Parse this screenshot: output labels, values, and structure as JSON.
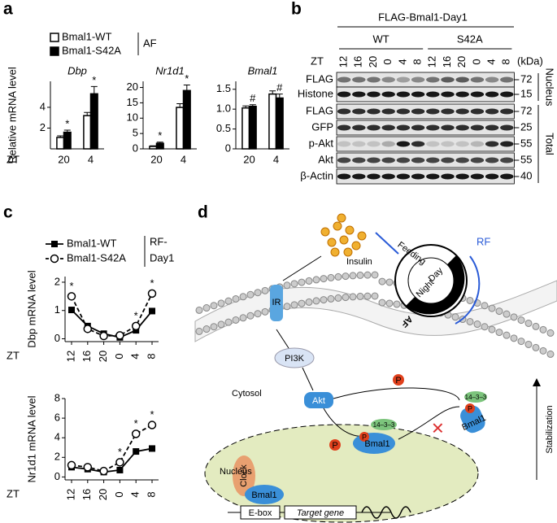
{
  "panel_letters": [
    "a",
    "b",
    "c",
    "d"
  ],
  "chart_data": [
    {
      "type": "bar",
      "title": "Dbp",
      "y_label": "Relative mRNA level",
      "x_label": "ZT",
      "categories": [
        "20",
        "4"
      ],
      "series": [
        {
          "name": "Bmal1-WT",
          "color": "#ffffff",
          "values": [
            1.1,
            3.2
          ],
          "errors": [
            0.15,
            0.3
          ]
        },
        {
          "name": "Bmal1-S42A",
          "color": "#000000",
          "values": [
            1.6,
            5.3
          ],
          "errors": [
            0.2,
            0.7
          ]
        }
      ],
      "ylim": [
        0,
        6.5
      ],
      "yticks": [
        2,
        4
      ],
      "annotations": [
        {
          "text": "*",
          "series": 1,
          "category": 0
        },
        {
          "text": "*",
          "series": 1,
          "category": 1
        }
      ]
    },
    {
      "type": "bar",
      "title": "Nr1d1",
      "categories": [
        "20",
        "4"
      ],
      "series": [
        {
          "color": "#ffffff",
          "values": [
            0.8,
            13.5
          ],
          "errors": [
            0.2,
            1.2
          ]
        },
        {
          "color": "#000000",
          "values": [
            1.8,
            19
          ],
          "errors": [
            0.4,
            1.8
          ]
        }
      ],
      "ylim": [
        0,
        22
      ],
      "yticks": [
        0,
        5,
        10,
        15,
        20
      ],
      "annotations": [
        {
          "text": "*",
          "series": 1,
          "category": 0
        },
        {
          "text": "*",
          "series": 1,
          "category": 1
        }
      ]
    },
    {
      "type": "bar",
      "title": "Bmal1",
      "categories": [
        "20",
        "4"
      ],
      "series": [
        {
          "color": "#ffffff",
          "values": [
            1.03,
            1.38
          ],
          "errors": [
            0.05,
            0.08
          ]
        },
        {
          "color": "#000000",
          "values": [
            1.07,
            1.28
          ],
          "errors": [
            0.04,
            0.1
          ]
        }
      ],
      "ylim": [
        0,
        1.7
      ],
      "yticks": [
        0,
        0.5,
        {
          "value": 1,
          "label": "1.0"
        },
        1.5
      ],
      "annotations": [
        {
          "text": "#",
          "series": 1,
          "category": 0
        },
        {
          "text": "#",
          "series": 1,
          "category": 1
        }
      ]
    },
    {
      "type": "line",
      "y_label": "Dbp mRNA level",
      "x_label": "ZT",
      "categories": [
        "12",
        "16",
        "20",
        "0",
        "4",
        "8"
      ],
      "series": [
        {
          "name": "Bmal1-WT",
          "color": "#000000",
          "marker": "square",
          "dashed": false,
          "values": [
            1.02,
            0.45,
            0.18,
            0.05,
            0.3,
            0.98
          ]
        },
        {
          "name": "Bmal1-S42A",
          "color": "#000000",
          "marker": "circle",
          "dashed": true,
          "values": [
            1.5,
            0.35,
            0.1,
            0.12,
            0.45,
            1.6
          ]
        }
      ],
      "ylim": [
        -0.1,
        2.2
      ],
      "yticks": [
        0,
        1,
        2
      ],
      "condition": [
        "RF-",
        "Day1"
      ],
      "annotations": [
        {
          "text": "*",
          "series": 1,
          "category": 0
        },
        {
          "text": "*",
          "series": 1,
          "category": 4
        },
        {
          "text": "*",
          "series": 1,
          "category": 5
        }
      ]
    },
    {
      "type": "line",
      "y_label": "Nr1d1 mRNA level",
      "x_label": "ZT",
      "categories": [
        "12",
        "16",
        "20",
        "0",
        "4",
        "8"
      ],
      "series": [
        {
          "color": "#000000",
          "marker": "square",
          "dashed": false,
          "values": [
            1.0,
            0.8,
            0.5,
            0.7,
            2.6,
            2.9
          ]
        },
        {
          "color": "#000000",
          "marker": "circle",
          "dashed": true,
          "values": [
            1.2,
            1.0,
            0.6,
            1.5,
            4.4,
            5.3
          ]
        }
      ],
      "ylim": [
        -0.3,
        8
      ],
      "yticks": [
        0,
        2,
        4,
        6,
        8
      ],
      "annotations": [
        {
          "text": "*",
          "series": 1,
          "category": 3
        },
        {
          "text": "*",
          "series": 1,
          "category": 4
        },
        {
          "text": "*",
          "series": 1,
          "category": 5
        }
      ]
    }
  ],
  "panel_a_condition": "AF",
  "blot": {
    "title": "FLAG-Bmal1-Day1",
    "groups": [
      "WT",
      "S42A"
    ],
    "zt_label": "ZT",
    "kda_label": "(kDa)",
    "lanes": [
      "12",
      "16",
      "20",
      "0",
      "4",
      "8",
      "12",
      "16",
      "20",
      "0",
      "4",
      "8"
    ],
    "rows": [
      {
        "label": "FLAG",
        "marker": "72"
      },
      {
        "label": "Histone",
        "marker": "15"
      },
      {
        "label": "FLAG",
        "marker": "72"
      },
      {
        "label": "GFP",
        "marker": "25"
      },
      {
        "label": "p-Akt",
        "marker": "55"
      },
      {
        "label": "Akt",
        "marker": "55"
      },
      {
        "label": "β-Actin",
        "marker": "40"
      }
    ],
    "fractions": [
      "Nucleus",
      "Total"
    ]
  },
  "diagram": {
    "insulin": "Insulin",
    "feeding": "Feeding",
    "rf": "RF",
    "day": "Day",
    "night": "Night",
    "af": "AF",
    "ir": "IR",
    "pi3k": "PI3K",
    "cytosol": "Cytosol",
    "akt": "Akt",
    "phospho": [
      "P",
      "P",
      "P",
      "P"
    ],
    "nucleus": "Nucleus",
    "clock": "Clock",
    "bmal1": [
      "Bmal1",
      "Bmal1",
      "Bmal1"
    ],
    "adaptor": [
      "14–3–3",
      "14–3–3"
    ],
    "ebox": "E-box",
    "target": "Target gene",
    "stabilization": "Stabilization"
  }
}
